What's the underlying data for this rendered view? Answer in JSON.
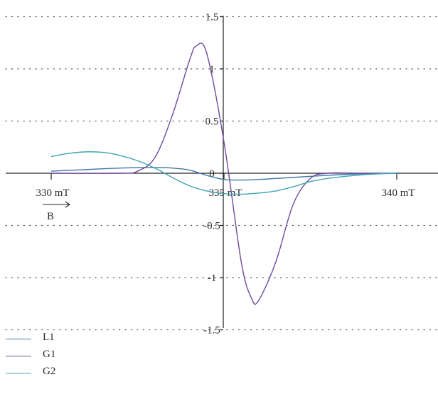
{
  "chart_data": {
    "type": "line",
    "title": "",
    "xlabel": "",
    "ylabel": "",
    "xlim": [
      330,
      340
    ],
    "ylim": [
      -1.5,
      1.5
    ],
    "x_tick_labels": [
      "330 mT",
      "335 mT",
      "340 mT"
    ],
    "y_tick_labels": [
      "1.5",
      "1",
      "0.5",
      "0",
      "-0.5",
      "-1",
      "-1.5"
    ],
    "y_ticks": [
      1.5,
      1,
      0.5,
      0,
      -0.5,
      -1,
      -1.5
    ],
    "x_ticks": [
      330,
      335,
      340
    ],
    "field_annotation": "B",
    "grid": "dotted horizontal",
    "legend_position": "bottom-left",
    "series": [
      {
        "name": "L1",
        "color": "#3d77a8",
        "x": [
          330,
          331,
          332,
          333,
          333.5,
          334,
          334.5,
          335,
          335.5,
          336,
          336.5,
          337,
          338,
          339,
          340
        ],
        "y": [
          0.02,
          0.035,
          0.05,
          0.055,
          0.05,
          0.03,
          -0.02,
          -0.06,
          -0.065,
          -0.06,
          -0.05,
          -0.04,
          -0.02,
          -0.005,
          0
        ]
      },
      {
        "name": "G1",
        "color": "#6e4a9e",
        "x": [
          330,
          332,
          332.5,
          333,
          333.5,
          334,
          334.2,
          334.5,
          335,
          335.5,
          335.8,
          336,
          336.5,
          337,
          337.5,
          338,
          339,
          340
        ],
        "y": [
          0,
          0,
          0.02,
          0.15,
          0.55,
          1.08,
          1.22,
          1.15,
          0.3,
          -0.85,
          -1.2,
          -1.22,
          -0.85,
          -0.3,
          -0.05,
          0,
          0,
          0
        ]
      },
      {
        "name": "G2",
        "color": "#3fa3b5",
        "x": [
          330,
          330.5,
          331,
          331.5,
          332,
          332.5,
          333,
          333.5,
          334,
          334.5,
          335,
          335.5,
          336,
          336.5,
          337,
          337.5,
          338,
          338.5,
          339,
          339.5,
          340
        ],
        "y": [
          0.16,
          0.19,
          0.205,
          0.2,
          0.17,
          0.12,
          0.05,
          -0.04,
          -0.12,
          -0.17,
          -0.195,
          -0.2,
          -0.19,
          -0.17,
          -0.13,
          -0.08,
          -0.05,
          -0.03,
          -0.015,
          -0.005,
          0
        ]
      }
    ]
  }
}
